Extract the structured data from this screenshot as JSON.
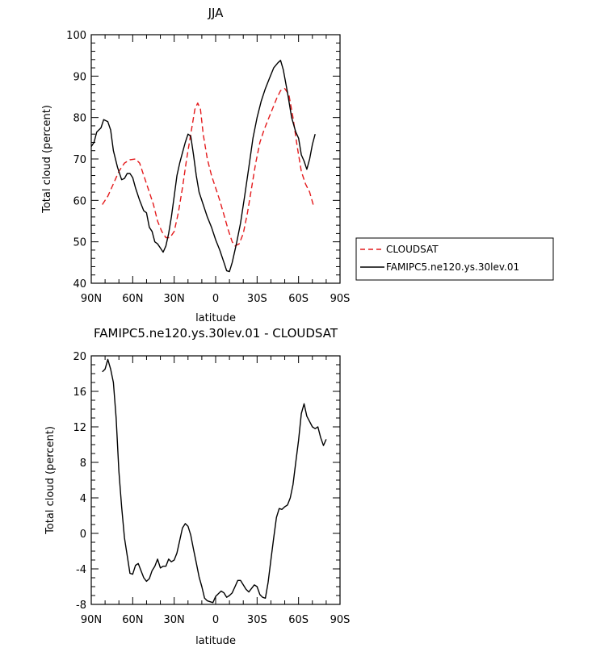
{
  "chart_data": [
    {
      "type": "line",
      "title": "JJA",
      "xlabel": "latitude",
      "ylabel": "Total cloud (percent)",
      "xlim": [
        90,
        -90
      ],
      "ylim": [
        40,
        100
      ],
      "x_ticks": [
        90,
        60,
        30,
        0,
        -30,
        -60,
        -90
      ],
      "x_tick_labels": [
        "90N",
        "60N",
        "30N",
        "0",
        "30S",
        "60S",
        "90S"
      ],
      "y_ticks": [
        40,
        50,
        60,
        70,
        80,
        90,
        100
      ],
      "y_tick_labels": [
        "40",
        "50",
        "60",
        "70",
        "80",
        "90",
        "100"
      ],
      "legend_position": "right, outside plot",
      "series": [
        {
          "name": "CLOUDSAT",
          "color": "#e41a1c",
          "dash": "dashed",
          "points": [
            [
              82,
              59
            ],
            [
              78,
              61
            ],
            [
              74,
              64
            ],
            [
              70,
              67
            ],
            [
              66,
              69
            ],
            [
              62,
              69.8
            ],
            [
              58,
              70
            ],
            [
              55,
              69
            ],
            [
              52,
              66
            ],
            [
              48,
              62
            ],
            [
              45,
              59
            ],
            [
              42,
              55
            ],
            [
              39,
              52.5
            ],
            [
              36,
              51
            ],
            [
              33,
              51
            ],
            [
              30,
              52.5
            ],
            [
              27,
              57
            ],
            [
              24,
              63
            ],
            [
              21,
              70
            ],
            [
              18,
              76
            ],
            [
              15,
              82
            ],
            [
              13,
              83.5
            ],
            [
              11,
              82
            ],
            [
              9,
              76
            ],
            [
              6,
              70
            ],
            [
              3,
              66
            ],
            [
              0,
              63
            ],
            [
              -3,
              60
            ],
            [
              -6,
              56.5
            ],
            [
              -9,
              53
            ],
            [
              -12,
              50
            ],
            [
              -14,
              49
            ],
            [
              -17,
              49.5
            ],
            [
              -20,
              52
            ],
            [
              -23,
              57
            ],
            [
              -26,
              63
            ],
            [
              -29,
              69
            ],
            [
              -32,
              74
            ],
            [
              -35,
              77
            ],
            [
              -38,
              79.5
            ],
            [
              -41,
              82
            ],
            [
              -44,
              84.5
            ],
            [
              -47,
              86.5
            ],
            [
              -50,
              87
            ],
            [
              -53,
              85.5
            ],
            [
              -56,
              80
            ],
            [
              -59,
              73
            ],
            [
              -62,
              67
            ],
            [
              -65,
              64
            ],
            [
              -68,
              62
            ],
            [
              -71,
              58.5
            ]
          ]
        },
        {
          "name": "FAMIPC5.ne120.ys.30lev.01",
          "color": "#000000",
          "dash": "solid",
          "points": [
            [
              90,
              73
            ],
            [
              88,
              74
            ],
            [
              86,
              76.5
            ],
            [
              83,
              77.5
            ],
            [
              81,
              79.5
            ],
            [
              78,
              79
            ],
            [
              76,
              77
            ],
            [
              74,
              72
            ],
            [
              71,
              68
            ],
            [
              68,
              65
            ],
            [
              66,
              65.3
            ],
            [
              64,
              66.5
            ],
            [
              62,
              66.5
            ],
            [
              60,
              65.5
            ],
            [
              58,
              63
            ],
            [
              55,
              60
            ],
            [
              52,
              57.5
            ],
            [
              50,
              57
            ],
            [
              48,
              53.5
            ],
            [
              46,
              52.5
            ],
            [
              44,
              50
            ],
            [
              42,
              49.5
            ],
            [
              40,
              48.5
            ],
            [
              38,
              47.5
            ],
            [
              36,
              49
            ],
            [
              34,
              52
            ],
            [
              32,
              56
            ],
            [
              30,
              61
            ],
            [
              28,
              66
            ],
            [
              26,
              69
            ],
            [
              24,
              71.5
            ],
            [
              22,
              74
            ],
            [
              20,
              76
            ],
            [
              18,
              75.5
            ],
            [
              16,
              71
            ],
            [
              14,
              66
            ],
            [
              12,
              62
            ],
            [
              9,
              59
            ],
            [
              6,
              56
            ],
            [
              3,
              53.5
            ],
            [
              0,
              50.5
            ],
            [
              -3,
              48
            ],
            [
              -6,
              45
            ],
            [
              -8,
              43
            ],
            [
              -10,
              42.8
            ],
            [
              -12,
              45
            ],
            [
              -15,
              49.5
            ],
            [
              -18,
              54.5
            ],
            [
              -21,
              61
            ],
            [
              -24,
              68
            ],
            [
              -27,
              75
            ],
            [
              -30,
              80
            ],
            [
              -33,
              84
            ],
            [
              -36,
              87
            ],
            [
              -39,
              89.5
            ],
            [
              -42,
              92
            ],
            [
              -45,
              93.2
            ],
            [
              -47,
              93.8
            ],
            [
              -49,
              91.5
            ],
            [
              -52,
              86
            ],
            [
              -55,
              80
            ],
            [
              -58,
              76.5
            ],
            [
              -60,
              75
            ],
            [
              -62,
              71
            ],
            [
              -64,
              69.5
            ],
            [
              -66,
              67.5
            ],
            [
              -68,
              70
            ],
            [
              -70,
              73.5
            ],
            [
              -72,
              76
            ]
          ]
        }
      ]
    },
    {
      "type": "line",
      "title": "FAMIPC5.ne120.ys.30lev.01 - CLOUDSAT",
      "xlabel": "latitude",
      "ylabel": "Total cloud (percent)",
      "xlim": [
        90,
        -90
      ],
      "ylim": [
        -8,
        20
      ],
      "x_ticks": [
        90,
        60,
        30,
        0,
        -30,
        -60,
        -90
      ],
      "x_tick_labels": [
        "90N",
        "60N",
        "30N",
        "0",
        "30S",
        "60S",
        "90S"
      ],
      "y_ticks": [
        -8,
        -4,
        0,
        4,
        8,
        12,
        16,
        20
      ],
      "y_tick_labels": [
        "-8",
        "-4",
        "0",
        "4",
        "8",
        "12",
        "16",
        "20"
      ],
      "series": [
        {
          "color": "#000000",
          "dash": "solid",
          "points": [
            [
              82,
              18.2
            ],
            [
              80,
              18.5
            ],
            [
              78,
              19.6
            ],
            [
              76,
              18.5
            ],
            [
              74,
              17
            ],
            [
              72,
              13
            ],
            [
              70,
              7
            ],
            [
              68,
              3
            ],
            [
              66,
              -0.5
            ],
            [
              64,
              -2.5
            ],
            [
              62,
              -4.5
            ],
            [
              60,
              -4.6
            ],
            [
              58,
              -3.6
            ],
            [
              56,
              -3.4
            ],
            [
              54,
              -4.2
            ],
            [
              52,
              -5
            ],
            [
              50,
              -5.4
            ],
            [
              48,
              -5.1
            ],
            [
              46,
              -4.2
            ],
            [
              44,
              -3.7
            ],
            [
              42,
              -2.9
            ],
            [
              40,
              -3.9
            ],
            [
              38,
              -3.7
            ],
            [
              36,
              -3.7
            ],
            [
              34,
              -2.9
            ],
            [
              32,
              -3.2
            ],
            [
              30,
              -3
            ],
            [
              28,
              -2.2
            ],
            [
              26,
              -0.8
            ],
            [
              24,
              0.6
            ],
            [
              22,
              1.1
            ],
            [
              20,
              0.8
            ],
            [
              18,
              -0.2
            ],
            [
              16,
              -1.8
            ],
            [
              14,
              -3.3
            ],
            [
              12,
              -4.9
            ],
            [
              10,
              -6
            ],
            [
              8,
              -7.3
            ],
            [
              6,
              -7.6
            ],
            [
              4,
              -7.7
            ],
            [
              2,
              -7.8
            ],
            [
              0,
              -7.1
            ],
            [
              -2,
              -6.8
            ],
            [
              -4,
              -6.5
            ],
            [
              -6,
              -6.7
            ],
            [
              -8,
              -7.2
            ],
            [
              -10,
              -7
            ],
            [
              -12,
              -6.7
            ],
            [
              -14,
              -6
            ],
            [
              -16,
              -5.3
            ],
            [
              -18,
              -5.3
            ],
            [
              -20,
              -5.8
            ],
            [
              -22,
              -6.3
            ],
            [
              -24,
              -6.6
            ],
            [
              -26,
              -6.2
            ],
            [
              -28,
              -5.8
            ],
            [
              -30,
              -6
            ],
            [
              -32,
              -6.9
            ],
            [
              -34,
              -7.2
            ],
            [
              -36,
              -7.3
            ],
            [
              -38,
              -5.5
            ],
            [
              -40,
              -3
            ],
            [
              -42,
              -0.5
            ],
            [
              -44,
              1.8
            ],
            [
              -46,
              2.8
            ],
            [
              -48,
              2.7
            ],
            [
              -50,
              3
            ],
            [
              -52,
              3.2
            ],
            [
              -54,
              4
            ],
            [
              -56,
              5.5
            ],
            [
              -58,
              8
            ],
            [
              -60,
              10.5
            ],
            [
              -62,
              13.5
            ],
            [
              -64,
              14.6
            ],
            [
              -66,
              13.2
            ],
            [
              -68,
              12.6
            ],
            [
              -70,
              12
            ],
            [
              -72,
              11.8
            ],
            [
              -74,
              12
            ],
            [
              -76,
              10.8
            ],
            [
              -78,
              9.9
            ],
            [
              -80,
              10.6
            ]
          ]
        }
      ]
    }
  ]
}
